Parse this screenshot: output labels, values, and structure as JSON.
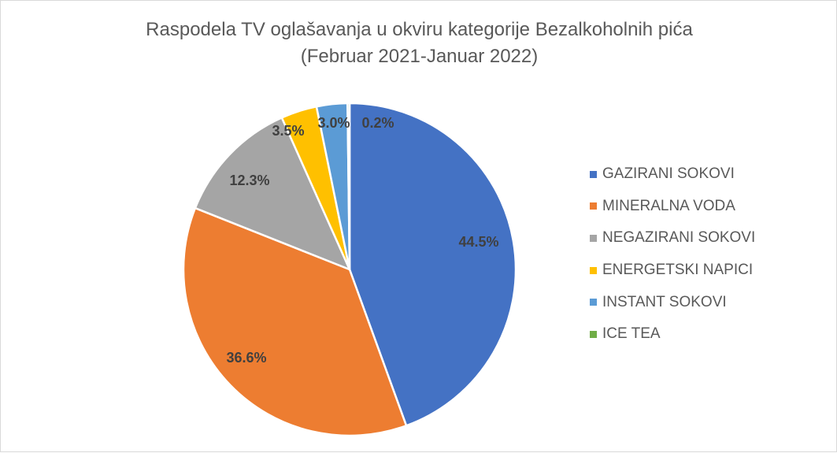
{
  "chart_data": {
    "type": "pie",
    "title": "Raspodela TV oglašavanja u okviru kategorije Bezalkoholnih pića",
    "subtitle": "(Februar 2021-Januar 2022)",
    "categories": [
      "GAZIRANI SOKOVI",
      "MINERALNA VODA",
      "NEGAZIRANI SOKOVI",
      "ENERGETSKI NAPICI",
      "INSTANT SOKOVI",
      "ICE TEA"
    ],
    "values": [
      44.5,
      36.6,
      12.3,
      3.5,
      3.0,
      0.2
    ],
    "labels": [
      "44.5%",
      "36.6%",
      "12.3%",
      "3.5%",
      "3.0%",
      "0.2%"
    ],
    "colors": [
      "#4472c4",
      "#ed7d31",
      "#a5a5a5",
      "#ffc000",
      "#5b9bd5",
      "#70ad47"
    ],
    "legend_position": "right"
  }
}
